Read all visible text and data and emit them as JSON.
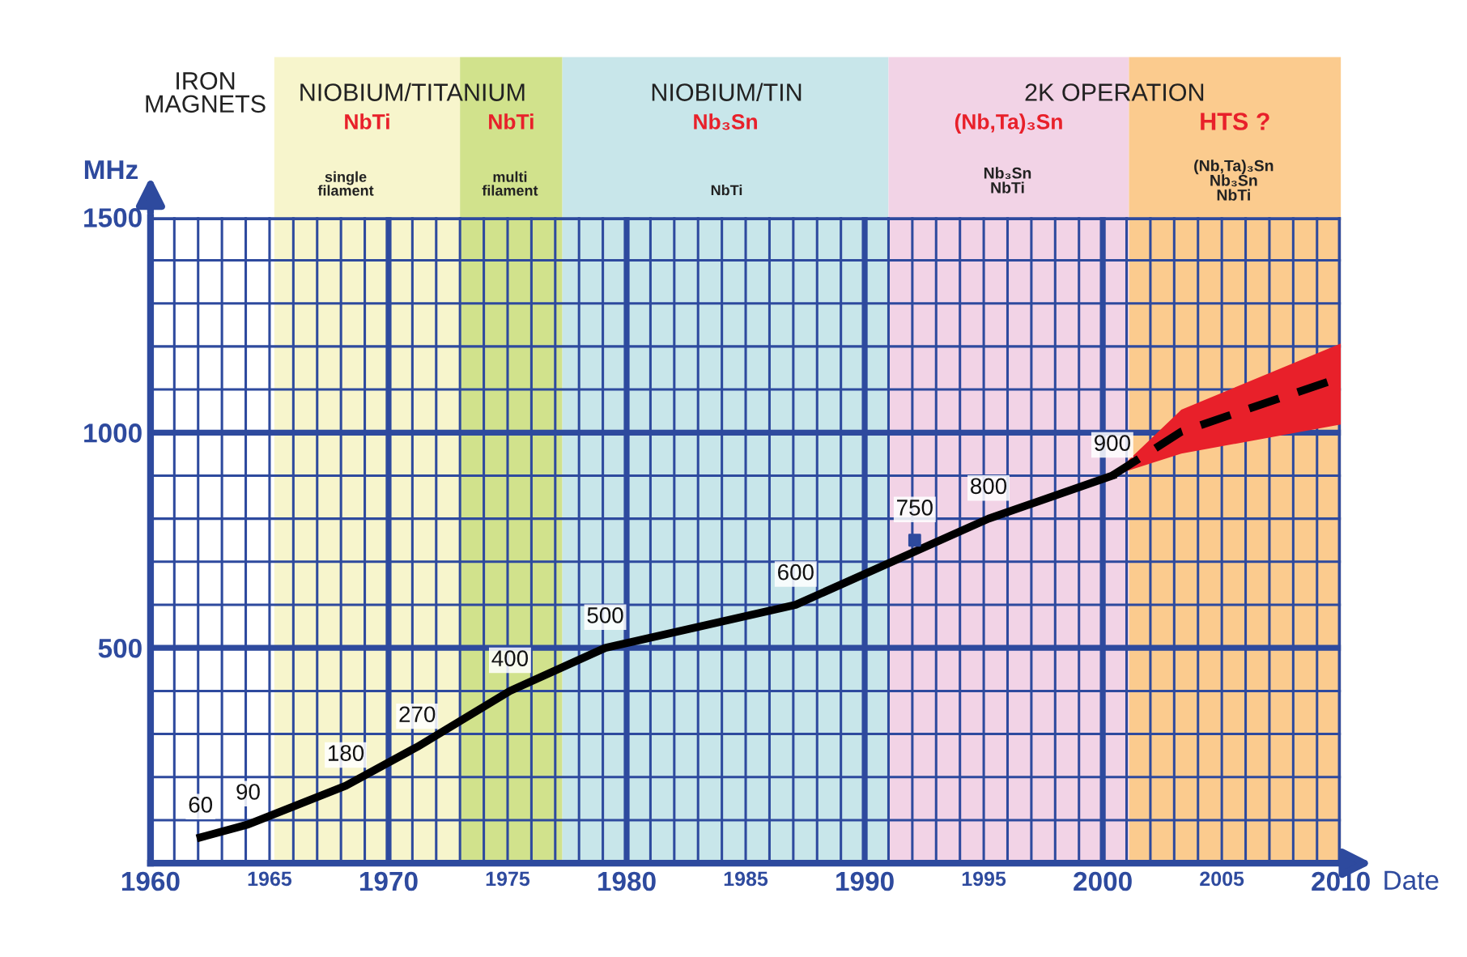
{
  "chart_data": {
    "type": "line",
    "xlabel": "Date",
    "ylabel": "MHz",
    "xlim": [
      1960,
      2010
    ],
    "ylim": [
      0,
      1500
    ],
    "xticks": [
      {
        "value": 1960,
        "label": "1960"
      },
      {
        "value": 1961,
        "label": null
      },
      {
        "value": 1962,
        "label": null
      },
      {
        "value": 1963,
        "label": null
      },
      {
        "value": 1964,
        "label": null
      },
      {
        "value": 1965,
        "label": "1965"
      },
      {
        "value": 1966,
        "label": null
      },
      {
        "value": 1967,
        "label": null
      },
      {
        "value": 1968,
        "label": null
      },
      {
        "value": 1969,
        "label": null
      },
      {
        "value": 1970,
        "label": "1970"
      },
      {
        "value": 1971,
        "label": null
      },
      {
        "value": 1972,
        "label": null
      },
      {
        "value": 1973,
        "label": null
      },
      {
        "value": 1974,
        "label": null
      },
      {
        "value": 1975,
        "label": "1975"
      },
      {
        "value": 1976,
        "label": null
      },
      {
        "value": 1977,
        "label": null
      },
      {
        "value": 1978,
        "label": null
      },
      {
        "value": 1979,
        "label": null
      },
      {
        "value": 1980,
        "label": "1980"
      },
      {
        "value": 1981,
        "label": null
      },
      {
        "value": 1982,
        "label": null
      },
      {
        "value": 1983,
        "label": null
      },
      {
        "value": 1984,
        "label": null
      },
      {
        "value": 1985,
        "label": "1985"
      },
      {
        "value": 1986,
        "label": null
      },
      {
        "value": 1987,
        "label": null
      },
      {
        "value": 1988,
        "label": null
      },
      {
        "value": 1989,
        "label": null
      },
      {
        "value": 1990,
        "label": "1990"
      },
      {
        "value": 1991,
        "label": null
      },
      {
        "value": 1992,
        "label": null
      },
      {
        "value": 1993,
        "label": null
      },
      {
        "value": 1994,
        "label": null
      },
      {
        "value": 1995,
        "label": "1995"
      },
      {
        "value": 1996,
        "label": null
      },
      {
        "value": 1997,
        "label": null
      },
      {
        "value": 1998,
        "label": null
      },
      {
        "value": 1999,
        "label": null
      },
      {
        "value": 2000,
        "label": "2000"
      },
      {
        "value": 2001,
        "label": null
      },
      {
        "value": 2002,
        "label": null
      },
      {
        "value": 2003,
        "label": null
      },
      {
        "value": 2004,
        "label": null
      },
      {
        "value": 2005,
        "label": "2005"
      },
      {
        "value": 2006,
        "label": null
      },
      {
        "value": 2007,
        "label": null
      },
      {
        "value": 2008,
        "label": null
      },
      {
        "value": 2009,
        "label": null
      },
      {
        "value": 2010,
        "label": "2010"
      }
    ],
    "yticks": [
      {
        "value": 100,
        "label": null
      },
      {
        "value": 200,
        "label": null
      },
      {
        "value": 300,
        "label": null
      },
      {
        "value": 400,
        "label": null
      },
      500,
      {
        "value": 600,
        "label": null
      },
      {
        "value": 700,
        "label": null
      },
      {
        "value": 800,
        "label": null
      },
      {
        "value": 900,
        "label": null
      },
      1000,
      {
        "value": 1100,
        "label": null
      },
      {
        "value": 1200,
        "label": null
      },
      {
        "value": 1300,
        "label": null
      },
      {
        "value": 1400,
        "label": null
      },
      1500
    ],
    "grid": true,
    "legend": false,
    "series": [
      {
        "color": "#000000",
        "x": [
          1962.1,
          1964.1,
          1968.2,
          1971.2,
          1975.1,
          1979.1,
          1987.1,
          1995.2,
          2000.4
        ],
        "values": [
          60,
          90,
          180,
          270,
          400,
          500,
          600,
          800,
          900
        ],
        "line_style": "solid",
        "marker": "none"
      },
      {
        "type": "scatter",
        "color": "#2e4a9e",
        "x": [
          1992.1
        ],
        "values": [
          750
        ],
        "marker": "square"
      },
      {
        "color": "#000000",
        "x": [
          2000.4,
          2003.3,
          2010
        ],
        "values": [
          900,
          1002,
          1128
        ],
        "lower": [
          900,
          951,
          1019
        ],
        "upper": [
          900,
          1053,
          1207
        ],
        "line_style": "dashed",
        "marker": "none",
        "data_labels": false
      }
    ],
    "data_labels": true,
    "bands": [
      {
        "axis": "x",
        "from": 1965.2,
        "to": 1973.0,
        "label": "NbTi",
        "color": "#f7f5cc"
      },
      {
        "axis": "x",
        "from": 1973.0,
        "to": 1977.3,
        "label": "NbTi",
        "color": "#d1e28c"
      },
      {
        "axis": "x",
        "from": 1977.3,
        "to": 1991.0,
        "label": "Nb₃Sn",
        "color": "#c8e6ea"
      },
      {
        "axis": "x",
        "from": 1991.0,
        "to": 2001.1,
        "label": "(Nb,Ta)₃Sn",
        "color": "#f2d3e6"
      },
      {
        "axis": "x",
        "from": 2001.1,
        "to": 2010,
        "label": "HTS ?",
        "color": "#fbcb8e"
      }
    ],
    "annotations": [
      "IRON\nMAGNETS",
      "NIOBIUM/TITANIUM",
      "NIOBIUM/TIN",
      "2K OPERATION",
      "single\nfilament",
      "multi\nfilament",
      "NbTi",
      "Nb₃Sn\nNbTi",
      "(Nb,Ta)₃Sn\nNb₃Sn\nNbTi"
    ]
  }
}
